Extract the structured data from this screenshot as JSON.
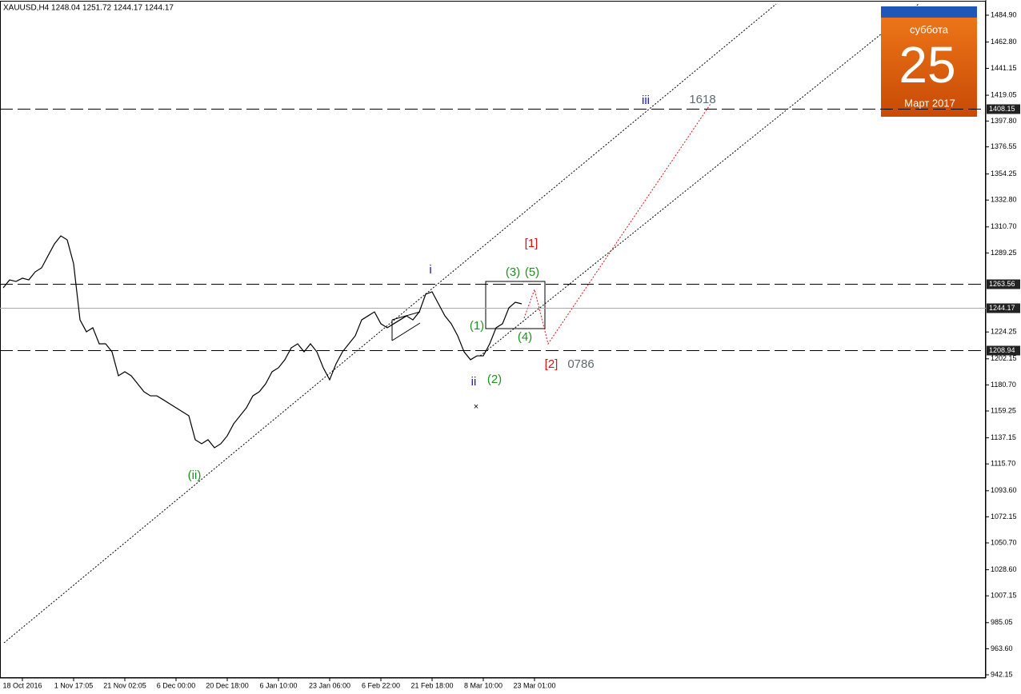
{
  "chart_data": {
    "type": "line",
    "title": "XAUUSD,H4  1248.04 1251.72 1244.17 1244.17",
    "categories": [
      null,
      null,
      null,
      "18 Oct 2016",
      null,
      null,
      null,
      null,
      null,
      null,
      null,
      "1 Nov 17:05",
      null,
      null,
      null,
      null,
      null,
      null,
      null,
      "21 Nov 02:05",
      null,
      null,
      null,
      null,
      null,
      null,
      null,
      "6 Dec 00:00",
      null,
      null,
      null,
      null,
      null,
      null,
      null,
      "20 Dec 18:00",
      null,
      null,
      null,
      null,
      null,
      null,
      null,
      "6 Jan 10:00",
      null,
      null,
      null,
      null,
      null,
      null,
      null,
      "23 Jan 06:00",
      null,
      null,
      null,
      null,
      null,
      null,
      null,
      "6 Feb 22:00",
      null,
      null,
      null,
      null,
      null,
      null,
      null,
      "21 Feb 18:00",
      null,
      null,
      null,
      null,
      null,
      null,
      null,
      "8 Mar 10:00",
      null,
      null,
      null,
      null,
      null,
      null,
      null,
      "23 Mar 01:00",
      null
    ],
    "series": [
      {
        "name": "XAUUSD,H4",
        "color": "#000000",
        "values": [
          1260.6,
          1267.1,
          1265.8,
          1268.5,
          1267.1,
          1273.7,
          1277.0,
          1286.9,
          1296.7,
          1303.3,
          1300.0,
          1280.3,
          1234.2,
          1224.4,
          1227.7,
          1214.5,
          1214.5,
          1207.9,
          1188.2,
          1191.5,
          1188.2,
          1181.6,
          1175.0,
          1171.7,
          1171.7,
          1168.5,
          1165.2,
          1161.9,
          1158.6,
          1155.3,
          1135.6,
          1132.3,
          1135.6,
          1129.0,
          1132.3,
          1138.8,
          1148.7,
          1155.3,
          1161.9,
          1171.7,
          1175.0,
          1181.6,
          1191.5,
          1194.8,
          1201.4,
          1211.2,
          1214.5,
          1207.9,
          1214.5,
          1207.9,
          1194.8,
          1184.9,
          1198.1,
          1207.9,
          1214.5,
          1221.1,
          1234.2,
          1237.5,
          1240.8,
          1231.0,
          1227.7,
          1231.0,
          1234.2,
          1237.5,
          1234.2,
          1240.8,
          1255.3,
          1257.3,
          1247.4,
          1237.5,
          1231.0,
          1221.1,
          1207.9,
          1201.4,
          1204.6,
          1204.6,
          1214.5,
          1227.7,
          1231.0,
          1244.1,
          1248.7,
          1247.4,
          null,
          null,
          null
        ]
      }
    ],
    "ylim": [
      939.52,
      1496.08
    ],
    "yticks": [
      {
        "value": 1484.9,
        "label": "1484.90"
      },
      {
        "value": 1462.8,
        "label": "1462.80"
      },
      1441.15,
      1419.05,
      {
        "value": 1397.8,
        "label": "1397.80"
      },
      1376.55,
      1354.25,
      {
        "value": 1332.8,
        "label": "1332.80"
      },
      {
        "value": 1310.7,
        "label": "1310.70"
      },
      1289.25,
      1224.25,
      1202.15,
      {
        "value": 1180.7,
        "label": "1180.70"
      },
      1159.25,
      1137.15,
      {
        "value": 1115.7,
        "label": "1115.70"
      },
      {
        "value": 1093.6,
        "label": "1093.60"
      },
      1072.15,
      {
        "value": 1050.7,
        "label": "1050.70"
      },
      {
        "value": 1028.6,
        "label": "1028.60"
      },
      1007.15,
      985.05,
      {
        "value": 963.6,
        "label": "963.60"
      },
      942.15
    ],
    "levels": [
      {
        "value": 1408.15,
        "style": "dashed"
      },
      {
        "value": 1263.56,
        "style": "dashed"
      },
      {
        "value": 1244.17,
        "style": "solid"
      },
      {
        "value": 1208.94,
        "style": "dashed"
      }
    ],
    "annotations": [
      {
        "text": "iii",
        "color": "#1a1aa6"
      },
      {
        "text": "1618",
        "color": "#5a6a70"
      },
      {
        "text": "i",
        "color": "#1a1aa6"
      },
      {
        "text": "[1]",
        "color": "#e01010"
      },
      {
        "text": "(3)",
        "color": "#1f8f1f"
      },
      {
        "text": "(5)",
        "color": "#1f8f1f"
      },
      {
        "text": "(1)",
        "color": "#1f8f1f"
      },
      {
        "text": "(4)",
        "color": "#1f8f1f"
      },
      {
        "text": "[2]",
        "color": "#e01010"
      },
      {
        "text": "0786",
        "color": "#5a6a70"
      },
      {
        "text": "ii",
        "color": "#1a1aa6"
      },
      {
        "text": "(2)",
        "color": "#1f8f1f"
      },
      {
        "text": "(ii)",
        "color": "#1f8f1f"
      }
    ]
  },
  "calendar": {
    "weekday": "суббота",
    "day": "25",
    "month": "Март 2017"
  }
}
